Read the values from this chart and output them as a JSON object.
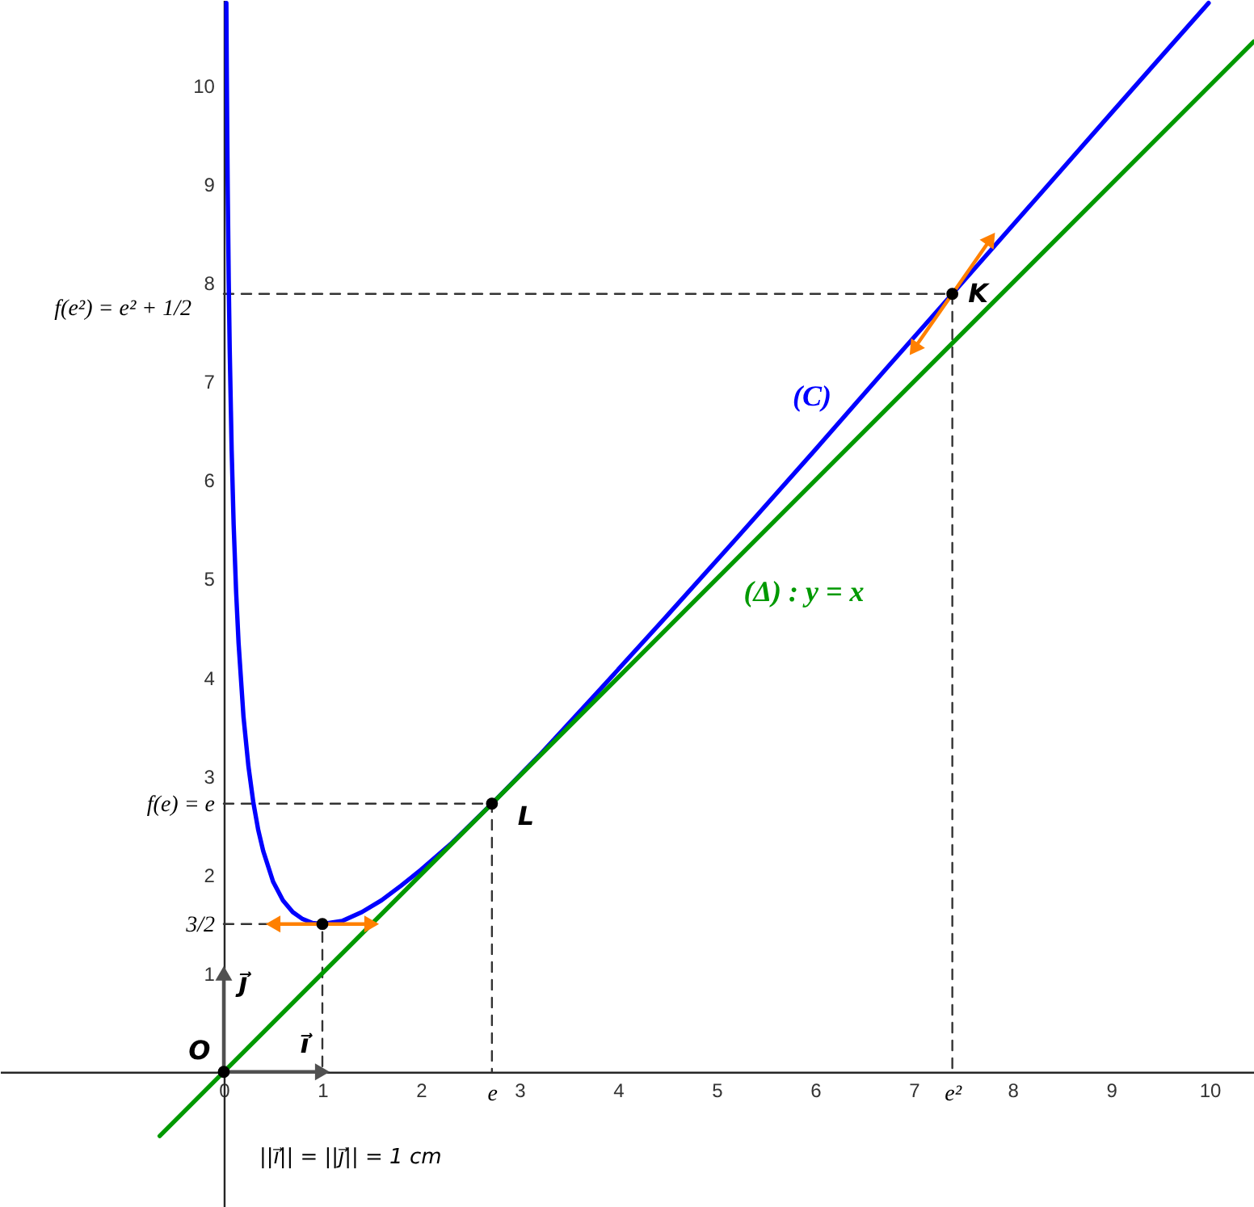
{
  "chart_data": {
    "type": "line",
    "xlim": [
      -2.27,
      10.45
    ],
    "ylim": [
      -1.37,
      10.87
    ],
    "xticks": [
      0,
      1,
      2,
      {
        "value": 2.72,
        "label": "e"
      },
      3,
      4,
      5,
      6,
      7,
      {
        "value": 7.39,
        "label": "e²"
      },
      8,
      9,
      10
    ],
    "yticks": [
      1,
      {
        "value": 1.5,
        "label": "3/2"
      },
      2,
      {
        "value": 2.72,
        "label": "f(e) = e"
      },
      3,
      4,
      5,
      6,
      7,
      8,
      9,
      10
    ],
    "grid": false,
    "legend": false,
    "series": [
      {
        "color": "#333333",
        "line_style": "dashed",
        "x": [
          0,
          1,
          1
        ],
        "values": [
          1.5,
          1.5,
          0
        ]
      },
      {
        "color": "#333333",
        "line_style": "dashed",
        "x": [
          0,
          2.72,
          2.72
        ],
        "values": [
          2.72,
          2.72,
          0
        ]
      },
      {
        "color": "#333333",
        "line_style": "dashed",
        "x": [
          0,
          7.39,
          7.39
        ],
        "values": [
          7.89,
          7.89,
          0
        ]
      },
      {
        "name": "(C)",
        "color": "#0000ff",
        "x": [
          0.026,
          0.03,
          0.035,
          0.04,
          0.05,
          0.06,
          0.08,
          0.1,
          0.125,
          0.15,
          0.2,
          0.25,
          0.3,
          0.35,
          0.4,
          0.5,
          0.6,
          0.7,
          0.8,
          0.9,
          1,
          1.2,
          1.4,
          1.6,
          1.8,
          2,
          2.3,
          2.72,
          3.2,
          3.8,
          4.5,
          5.2,
          6,
          6.7,
          7.39,
          8.2,
          9,
          9.6,
          9.99
        ],
        "values": [
          10.84,
          10.19,
          9.51,
          8.94,
          8.03,
          7.33,
          6.3,
          5.55,
          4.87,
          4.35,
          3.6,
          3.1,
          2.73,
          2.45,
          2.24,
          1.93,
          1.74,
          1.62,
          1.55,
          1.51,
          1.5,
          1.53,
          1.62,
          1.74,
          1.89,
          2.05,
          2.31,
          2.72,
          3.21,
          3.86,
          4.63,
          5.41,
          6.31,
          7.11,
          7.89,
          8.81,
          9.72,
          10.4,
          10.84
        ]
      },
      {
        "name": "(Δ) : y = x",
        "color": "#009900",
        "x": [
          -0.65,
          10.45
        ],
        "values": [
          -0.65,
          10.45
        ]
      },
      {
        "color": "#505050",
        "marker": "triangle",
        "x": [
          1,
          0,
          0
        ],
        "values": [
          0,
          0,
          1
        ]
      },
      {
        "color": "#ff8000",
        "marker": "triangle",
        "x": [
          0.5,
          1,
          1.5
        ],
        "values": [
          1.5,
          1.5,
          1.5
        ]
      },
      {
        "color": "#ff8000",
        "marker": "triangle",
        "x": [
          7.0,
          7.39,
          7.78
        ],
        "values": [
          7.33,
          7.89,
          8.45
        ]
      },
      {
        "type": "scatter",
        "color": "#000000",
        "marker": "circle",
        "x": [
          0,
          1,
          2.72,
          7.39
        ],
        "values": [
          0,
          1.5,
          2.72,
          7.89
        ]
      }
    ],
    "annotations": [
      {
        "text": "O",
        "x": 0,
        "y": 0
      },
      {
        "text": "L",
        "x": 2.72,
        "y": 2.72
      },
      {
        "text": "K",
        "x": 7.39,
        "y": 7.89
      },
      {
        "text": "i⃗",
        "x": 1,
        "y": 0
      },
      {
        "text": "j⃗",
        "x": 0,
        "y": 1
      },
      {
        "text": "f(e²) = e² + 1/2",
        "x": 0,
        "y": 7.89
      },
      "||i⃗|| = ||j⃗|| = 1 cm"
    ]
  }
}
